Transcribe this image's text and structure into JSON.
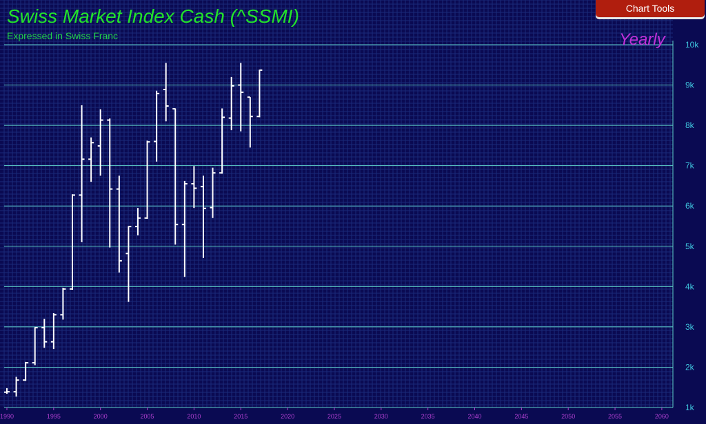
{
  "title": "Swiss Market Index Cash (^SSMI)",
  "subtitle": "Expressed in Swiss Franc",
  "period_label": "Yearly",
  "chart_tools_label": "Chart Tools",
  "colors": {
    "background": "#0a0a52",
    "grid_fine": "#1a2a7a",
    "grid_major": "#5fd0c8",
    "bars": "#ffffff",
    "y_tick": "#40c8e0",
    "x_tick": "#b040d0",
    "title": "#22e22a",
    "period": "#c030d8",
    "button": "#b01e0e"
  },
  "chart_data": {
    "type": "ohlc",
    "title": "Swiss Market Index Cash (^SSMI)",
    "subtitle": "Expressed in Swiss Franc",
    "xlim": [
      1989.5,
      2061.5
    ],
    "ylim": [
      1000,
      10000
    ],
    "y_ticks": [
      {
        "value": 10000,
        "label": "10k"
      },
      {
        "value": 9000,
        "label": "9k"
      },
      {
        "value": 8000,
        "label": "8k"
      },
      {
        "value": 7000,
        "label": "7k"
      },
      {
        "value": 6000,
        "label": "6k"
      },
      {
        "value": 5000,
        "label": "5k"
      },
      {
        "value": 4000,
        "label": "4k"
      },
      {
        "value": 3000,
        "label": "3k"
      },
      {
        "value": 2000,
        "label": "2k"
      },
      {
        "value": 1000,
        "label": "1k"
      }
    ],
    "x_ticks": [
      "1990",
      "1995",
      "2000",
      "2005",
      "2010",
      "2015",
      "2020",
      "2025",
      "2030",
      "2035",
      "2040",
      "2045",
      "2050",
      "2055",
      "2060"
    ],
    "grid": true,
    "bars": [
      {
        "x": 1990,
        "o": 1380,
        "h": 1480,
        "l": 1340,
        "c": 1390
      },
      {
        "x": 1991,
        "o": 1390,
        "h": 1760,
        "l": 1270,
        "c": 1680
      },
      {
        "x": 1992,
        "o": 1680,
        "h": 2130,
        "l": 1660,
        "c": 2110
      },
      {
        "x": 1993,
        "o": 2110,
        "h": 2990,
        "l": 2050,
        "c": 2980
      },
      {
        "x": 1994,
        "o": 2980,
        "h": 3200,
        "l": 2480,
        "c": 2630
      },
      {
        "x": 1995,
        "o": 2630,
        "h": 3340,
        "l": 2450,
        "c": 3300
      },
      {
        "x": 1996,
        "o": 3300,
        "h": 3970,
        "l": 3180,
        "c": 3940
      },
      {
        "x": 1997,
        "o": 3940,
        "h": 6290,
        "l": 3920,
        "c": 6270
      },
      {
        "x": 1998,
        "o": 6270,
        "h": 8500,
        "l": 5100,
        "c": 7160
      },
      {
        "x": 1999,
        "o": 7160,
        "h": 7700,
        "l": 6600,
        "c": 7570
      },
      {
        "x": 2000,
        "o": 7490,
        "h": 8400,
        "l": 6750,
        "c": 8130
      },
      {
        "x": 2001,
        "o": 8130,
        "h": 8170,
        "l": 4970,
        "c": 6420
      },
      {
        "x": 2002,
        "o": 6420,
        "h": 6750,
        "l": 4350,
        "c": 4640
      },
      {
        "x": 2003,
        "o": 4820,
        "h": 5500,
        "l": 3620,
        "c": 5490
      },
      {
        "x": 2004,
        "o": 5490,
        "h": 5950,
        "l": 5270,
        "c": 5700
      },
      {
        "x": 2005,
        "o": 5700,
        "h": 7620,
        "l": 5680,
        "c": 7590
      },
      {
        "x": 2006,
        "o": 7600,
        "h": 8860,
        "l": 7100,
        "c": 8790
      },
      {
        "x": 2007,
        "o": 8890,
        "h": 9550,
        "l": 8100,
        "c": 8480
      },
      {
        "x": 2008,
        "o": 8410,
        "h": 8420,
        "l": 5040,
        "c": 5540
      },
      {
        "x": 2009,
        "o": 5540,
        "h": 6620,
        "l": 4240,
        "c": 6550
      },
      {
        "x": 2010,
        "o": 6550,
        "h": 6990,
        "l": 5950,
        "c": 6440
      },
      {
        "x": 2011,
        "o": 6480,
        "h": 6750,
        "l": 4710,
        "c": 5940
      },
      {
        "x": 2012,
        "o": 5960,
        "h": 6950,
        "l": 5700,
        "c": 6820
      },
      {
        "x": 2013,
        "o": 6820,
        "h": 8420,
        "l": 6800,
        "c": 8200
      },
      {
        "x": 2014,
        "o": 8180,
        "h": 9200,
        "l": 7880,
        "c": 8980
      },
      {
        "x": 2015,
        "o": 9000,
        "h": 9550,
        "l": 7850,
        "c": 8820
      },
      {
        "x": 2016,
        "o": 8700,
        "h": 8700,
        "l": 7450,
        "c": 8220
      },
      {
        "x": 2017,
        "o": 8220,
        "h": 9380,
        "l": 8200,
        "c": 9370
      }
    ]
  }
}
